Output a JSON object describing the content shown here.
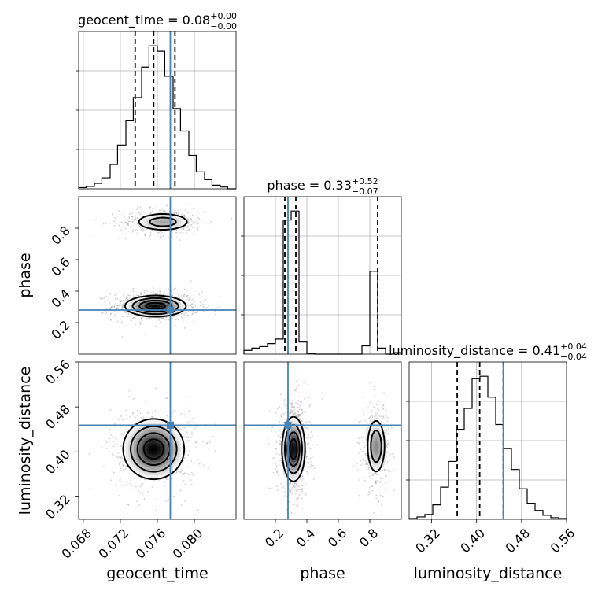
{
  "chart_data": {
    "type": "corner",
    "parameters": [
      "geocent_time",
      "phase",
      "luminosity_distance"
    ],
    "truths": {
      "geocent_time": 0.0774,
      "phase": 0.28,
      "luminosity_distance": 0.4475
    },
    "titles": [
      {
        "param": "geocent_time",
        "text": "geocent_time = 0.08",
        "sup": "+0.00",
        "sub": "−0.00"
      },
      {
        "param": "phase",
        "text": "phase = 0.33",
        "sup": "+0.52",
        "sub": "−0.07"
      },
      {
        "param": "luminosity_distance",
        "text": "luminosity_distance = 0.41",
        "sup": "+0.04",
        "sub": "−0.04"
      }
    ],
    "axes": {
      "geocent_time": {
        "label": "geocent_time",
        "range": [
          0.0675,
          0.0845
        ],
        "ticks": [
          0.068,
          0.072,
          0.076,
          0.08
        ],
        "tick_labels": [
          "0.068",
          "0.072",
          "0.076",
          "0.080"
        ]
      },
      "phase": {
        "label": "phase",
        "range": [
          0.0,
          1.0
        ],
        "ticks": [
          0.2,
          0.4,
          0.6,
          0.8
        ],
        "tick_labels": [
          "0.2",
          "0.4",
          "0.6",
          "0.8"
        ]
      },
      "luminosity_distance": {
        "label": "luminosity_distance",
        "range": [
          0.28,
          0.56
        ],
        "ticks": [
          0.32,
          0.4,
          0.48,
          0.56
        ],
        "tick_labels": [
          "0.32",
          "0.40",
          "0.48",
          "0.56"
        ]
      }
    },
    "marginals": {
      "geocent_time": {
        "edges": [
          0.0675,
          0.0683,
          0.0692,
          0.07,
          0.0709,
          0.0717,
          0.0726,
          0.0734,
          0.0743,
          0.0751,
          0.076,
          0.0768,
          0.0777,
          0.0785,
          0.0794,
          0.0802,
          0.0811,
          0.0819,
          0.0828,
          0.0836,
          0.0845
        ],
        "counts": [
          2,
          4,
          9,
          18,
          40,
          72,
          112,
          150,
          200,
          235,
          226,
          185,
          132,
          95,
          55,
          28,
          15,
          6,
          3,
          0
        ],
        "quantiles": [
          0.0736,
          0.0756,
          0.0779
        ]
      },
      "phase": {
        "edges": [
          0.0,
          0.05,
          0.1,
          0.15,
          0.2,
          0.25,
          0.3,
          0.35,
          0.4,
          0.45,
          0.5,
          0.55,
          0.6,
          0.65,
          0.7,
          0.75,
          0.8,
          0.85,
          0.9,
          0.95,
          1.0
        ],
        "counts": [
          5,
          8,
          10,
          14,
          20,
          178,
          190,
          16,
          1,
          0,
          0,
          0,
          0,
          0,
          0,
          11,
          110,
          8,
          0,
          2
        ],
        "quantiles": [
          0.26,
          0.33,
          0.85
        ]
      },
      "luminosity_distance": {
        "edges": [
          0.28,
          0.294,
          0.308,
          0.322,
          0.336,
          0.35,
          0.364,
          0.378,
          0.392,
          0.406,
          0.42,
          0.434,
          0.448,
          0.462,
          0.476,
          0.49,
          0.504,
          0.518,
          0.532,
          0.546,
          0.56
        ],
        "counts": [
          1,
          3,
          6,
          18,
          40,
          72,
          112,
          138,
          175,
          178,
          152,
          118,
          88,
          62,
          38,
          20,
          11,
          5,
          2,
          1
        ],
        "quantiles": [
          0.3655,
          0.4055,
          0.4475
        ]
      }
    },
    "joint": [
      {
        "x": "geocent_time",
        "y": "phase",
        "blobs": [
          {
            "cx": 0.0758,
            "cy": 0.305,
            "sx": 0.0016,
            "sy": 0.032,
            "w": 1.0
          },
          {
            "cx": 0.0766,
            "cy": 0.84,
            "sx": 0.0016,
            "sy": 0.03,
            "w": 0.45
          }
        ]
      },
      {
        "x": "geocent_time",
        "y": "luminosity_distance",
        "blobs": [
          {
            "cx": 0.0756,
            "cy": 0.405,
            "sx": 0.0016,
            "sy": 0.026,
            "w": 1.0
          }
        ]
      },
      {
        "x": "phase",
        "y": "luminosity_distance",
        "blobs": [
          {
            "cx": 0.315,
            "cy": 0.405,
            "sx": 0.035,
            "sy": 0.028,
            "w": 1.0
          },
          {
            "cx": 0.84,
            "cy": 0.41,
            "sx": 0.03,
            "sy": 0.026,
            "w": 0.55
          }
        ]
      }
    ]
  }
}
